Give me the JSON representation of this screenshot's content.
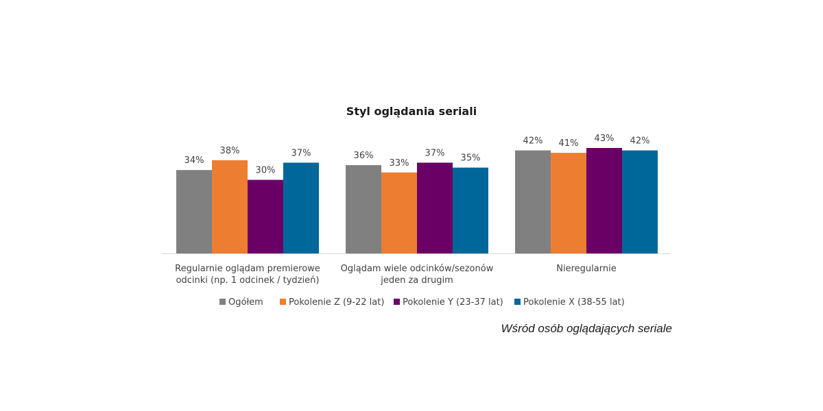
{
  "chart_data": {
    "type": "bar",
    "title": "Styl oglądania seriali",
    "categories": [
      [
        "Regularnie oglądam premierowe",
        "odcinki (np. 1 odcinek / tydzień)"
      ],
      [
        "Oglądam wiele odcinków/sezonów",
        "jeden za drugim"
      ],
      [
        "Nieregularnie"
      ]
    ],
    "series": [
      {
        "name": "Ogółem",
        "values": [
          34,
          36,
          42
        ],
        "color": "#808080"
      },
      {
        "name": "Pokolenie Z (9-22 lat)",
        "values": [
          38,
          33,
          41
        ],
        "color": "#ED7D31"
      },
      {
        "name": "Pokolenie Y (23-37 lat)",
        "values": [
          30,
          37,
          43
        ],
        "color": "#6A0066"
      },
      {
        "name": "Pokolenie X (38-55 lat)",
        "values": [
          37,
          35,
          42
        ],
        "color": "#00679A"
      }
    ],
    "value_suffix": "%",
    "ylim": [
      0,
      43
    ],
    "grid": false,
    "legend_position": "bottom",
    "xlabel": "",
    "ylabel": ""
  },
  "note": "Wśród osób oglądających seriale"
}
